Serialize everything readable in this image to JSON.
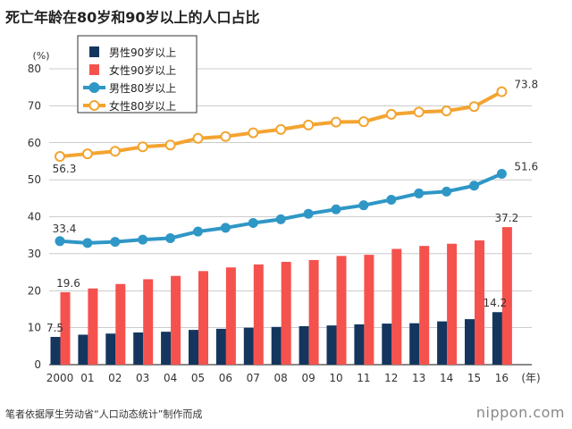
{
  "title": "死亡年龄在80岁和90岁以上的人口占比",
  "source": "笔者依据厚生劳动省“人口动态统计”制作而成",
  "brand": "nippon.com",
  "chart_data": {
    "type": "bar+line",
    "ylabel": "(%)",
    "xunit": "(年)",
    "ylim": [
      0,
      80
    ],
    "yticks": [
      0,
      10,
      20,
      30,
      40,
      50,
      60,
      70,
      80
    ],
    "categories": [
      "2000",
      "01",
      "02",
      "03",
      "04",
      "05",
      "06",
      "07",
      "08",
      "09",
      "10",
      "11",
      "12",
      "13",
      "14",
      "15",
      "16"
    ],
    "grid": true,
    "legend_position": "top-left",
    "series": [
      {
        "name": "男性90岁以上",
        "kind": "bar",
        "color": "#14365e",
        "values": [
          7.5,
          8.1,
          8.4,
          8.7,
          8.9,
          9.4,
          9.7,
          10.0,
          10.2,
          10.4,
          10.6,
          10.9,
          11.1,
          11.2,
          11.7,
          12.3,
          14.2
        ]
      },
      {
        "name": "女性90岁以上",
        "kind": "bar",
        "color": "#f5524e",
        "values": [
          19.6,
          20.6,
          21.8,
          23.1,
          24.0,
          25.3,
          26.3,
          27.1,
          27.8,
          28.3,
          29.4,
          29.7,
          31.3,
          32.1,
          32.7,
          33.6,
          37.2
        ]
      },
      {
        "name": "男性80岁以上",
        "kind": "line",
        "color": "#2f97c6",
        "marker": "filled",
        "values": [
          33.4,
          32.9,
          33.2,
          33.8,
          34.2,
          36.0,
          37.0,
          38.3,
          39.3,
          40.8,
          42.0,
          43.1,
          44.6,
          46.3,
          46.8,
          48.4,
          51.6
        ]
      },
      {
        "name": "女性80岁以上",
        "kind": "line",
        "color": "#f3a430",
        "marker": "hollow",
        "values": [
          56.3,
          57.0,
          57.7,
          58.9,
          59.4,
          61.2,
          61.7,
          62.7,
          63.6,
          64.8,
          65.6,
          65.7,
          67.7,
          68.3,
          68.6,
          69.8,
          73.8
        ]
      }
    ],
    "data_labels": [
      {
        "series": 0,
        "index": 0,
        "text": "7.5"
      },
      {
        "series": 0,
        "index": 16,
        "text": "14.2"
      },
      {
        "series": 1,
        "index": 0,
        "text": "19.6"
      },
      {
        "series": 1,
        "index": 16,
        "text": "37.2"
      },
      {
        "series": 2,
        "index": 0,
        "text": "33.4"
      },
      {
        "series": 2,
        "index": 16,
        "text": "51.6"
      },
      {
        "series": 3,
        "index": 0,
        "text": "56.3"
      },
      {
        "series": 3,
        "index": 16,
        "text": "73.8"
      }
    ]
  }
}
